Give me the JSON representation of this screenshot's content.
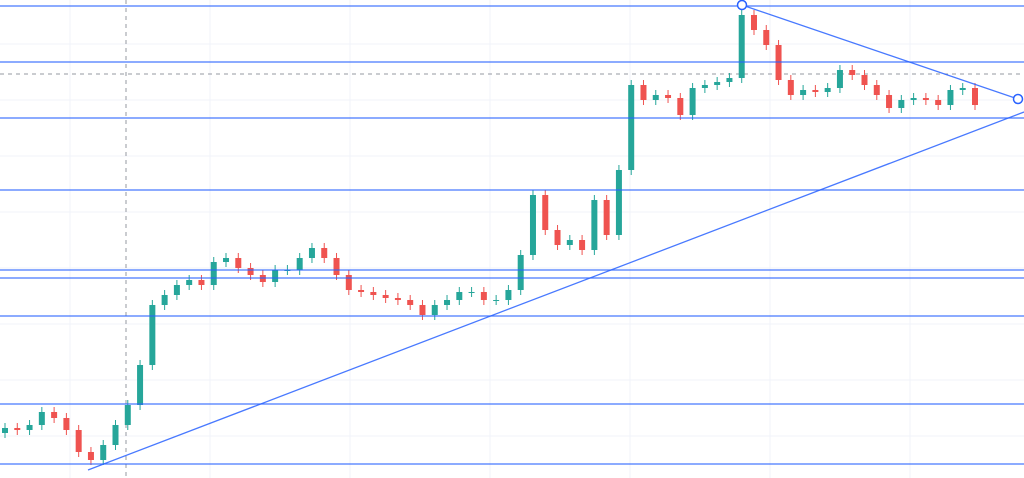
{
  "chart_data": {
    "type": "candlestick",
    "ylim": [
      0,
      478
    ],
    "up_color": "#26a69a",
    "down_color": "#ef5350",
    "open": [
      45,
      50,
      48,
      53,
      66,
      60,
      48,
      26,
      18,
      33,
      53,
      73,
      113,
      173,
      183,
      193,
      198,
      193,
      216,
      220,
      210,
      203,
      196,
      208,
      208,
      220,
      230,
      220,
      203,
      188,
      186,
      183,
      180,
      178,
      173,
      163,
      173,
      178,
      186,
      186,
      178,
      178,
      188,
      223,
      283,
      248,
      233,
      238,
      228,
      278,
      243,
      308,
      393,
      378,
      383,
      380,
      363,
      390,
      393,
      396,
      400,
      463,
      448,
      433,
      398,
      383,
      388,
      386,
      390,
      408,
      403,
      393,
      383,
      370,
      378,
      380,
      378,
      373,
      388,
      390
    ],
    "high": [
      55,
      55,
      58,
      71,
      71,
      65,
      53,
      31,
      38,
      58,
      78,
      118,
      178,
      188,
      198,
      203,
      203,
      221,
      225,
      225,
      215,
      208,
      213,
      213,
      225,
      235,
      235,
      225,
      208,
      193,
      191,
      188,
      185,
      183,
      178,
      178,
      183,
      191,
      191,
      191,
      183,
      193,
      228,
      288,
      288,
      253,
      243,
      243,
      283,
      283,
      313,
      398,
      398,
      388,
      388,
      385,
      395,
      398,
      401,
      405,
      468,
      468,
      453,
      438,
      403,
      393,
      393,
      395,
      413,
      413,
      408,
      398,
      388,
      383,
      385,
      385,
      383,
      393,
      395,
      395
    ],
    "low": [
      40,
      43,
      43,
      48,
      55,
      43,
      21,
      13,
      13,
      28,
      48,
      68,
      108,
      168,
      178,
      188,
      188,
      188,
      211,
      205,
      198,
      191,
      191,
      203,
      203,
      215,
      215,
      198,
      183,
      181,
      178,
      175,
      173,
      168,
      158,
      158,
      168,
      173,
      181,
      173,
      173,
      173,
      183,
      218,
      243,
      228,
      228,
      223,
      223,
      238,
      238,
      303,
      373,
      373,
      375,
      358,
      358,
      385,
      388,
      391,
      395,
      443,
      428,
      393,
      378,
      378,
      381,
      381,
      385,
      398,
      388,
      378,
      365,
      365,
      373,
      373,
      368,
      368,
      383,
      368
    ],
    "close": [
      50,
      48,
      53,
      66,
      60,
      48,
      26,
      18,
      33,
      53,
      73,
      113,
      173,
      183,
      193,
      198,
      193,
      216,
      220,
      210,
      203,
      196,
      208,
      208,
      220,
      230,
      220,
      203,
      188,
      186,
      183,
      180,
      178,
      173,
      163,
      173,
      178,
      186,
      186,
      178,
      178,
      188,
      223,
      283,
      248,
      233,
      238,
      228,
      278,
      243,
      308,
      393,
      378,
      383,
      380,
      363,
      390,
      393,
      396,
      400,
      463,
      448,
      433,
      398,
      383,
      388,
      386,
      390,
      408,
      403,
      393,
      383,
      370,
      378,
      380,
      378,
      373,
      388,
      390,
      373
    ]
  }
}
